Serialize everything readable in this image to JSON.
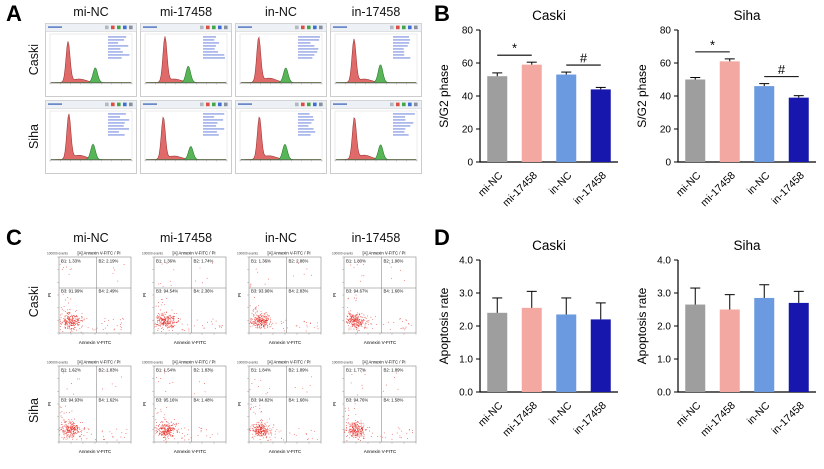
{
  "labels": {
    "A": "A",
    "B": "B",
    "C": "C",
    "D": "D"
  },
  "conditions": [
    "mi-NC",
    "mi-17458",
    "in-NC",
    "in-17458"
  ],
  "cell_lines": [
    "Caski",
    "Siha"
  ],
  "colors": {
    "bar_palette": [
      "#9e9e9e",
      "#f4a8a2",
      "#6b9ae0",
      "#1717ad"
    ],
    "hist_red": "#e06a6a",
    "hist_red_stroke": "#a03a3a",
    "hist_green": "#57b557",
    "hist_green_stroke": "#2e7d32",
    "dot_red": "#e5261f"
  },
  "panel_c": {
    "events_label": "100000 events",
    "plot_title": "[A] Annexin V-FITC / PI",
    "xlabel": "Annexin V-FITC",
    "ylabel": "PI",
    "rows": [
      {
        "cell_line": "Caski",
        "plots": [
          {
            "B1": "1.33%",
            "B2": "2.19%",
            "B3": "91.99%",
            "B4": "2.49%"
          },
          {
            "B1": "1.36%",
            "B2": "1.74%",
            "B3": "94.54%",
            "B4": "2.36%"
          },
          {
            "B1": "1.36%",
            "B2": "2.86%",
            "B3": "93.96%",
            "B4": "2.83%"
          },
          {
            "B1": "1.80%",
            "B2": "1.96%",
            "B3": "94.67%",
            "B4": "1.66%"
          }
        ]
      },
      {
        "cell_line": "Siha",
        "plots": [
          {
            "B1": "1.62%",
            "B2": "1.83%",
            "B3": "94.93%",
            "B4": "1.62%"
          },
          {
            "B1": "1.54%",
            "B2": "1.83%",
            "B3": "95.16%",
            "B4": "1.48%"
          },
          {
            "B1": "1.84%",
            "B2": "1.89%",
            "B3": "94.82%",
            "B4": "1.66%"
          },
          {
            "B1": "1.77%",
            "B2": "1.89%",
            "B3": "94.76%",
            "B4": "1.58%"
          }
        ]
      }
    ]
  },
  "chart_data": [
    {
      "type": "bar",
      "panel": "B",
      "title": "Caski",
      "ylabel": "S/G2 phase",
      "categories": [
        "mi-NC",
        "mi-17458",
        "in-NC",
        "in-17458"
      ],
      "values": [
        52,
        59,
        53,
        44
      ],
      "errors": [
        2,
        1.5,
        1.5,
        1.2
      ],
      "ylim": [
        0,
        80
      ],
      "yticks": [
        0,
        20,
        40,
        60,
        80
      ],
      "ytick_labels": [
        "0",
        "20",
        "40",
        "60",
        "80"
      ],
      "sig": [
        {
          "from": 0,
          "to": 1,
          "label": "*"
        },
        {
          "from": 2,
          "to": 3,
          "label": "#"
        }
      ]
    },
    {
      "type": "bar",
      "panel": "B",
      "title": "Siha",
      "ylabel": "S/G2 phase",
      "categories": [
        "mi-NC",
        "mi-17458",
        "in-NC",
        "in-17458"
      ],
      "values": [
        50,
        61,
        46,
        39
      ],
      "errors": [
        1.2,
        1.5,
        1.5,
        1.2
      ],
      "ylim": [
        0,
        80
      ],
      "yticks": [
        0,
        20,
        40,
        60,
        80
      ],
      "ytick_labels": [
        "0",
        "20",
        "40",
        "60",
        "80"
      ],
      "sig": [
        {
          "from": 0,
          "to": 1,
          "label": "*"
        },
        {
          "from": 2,
          "to": 3,
          "label": "#"
        }
      ]
    },
    {
      "type": "bar",
      "panel": "D",
      "title": "Caski",
      "ylabel": "Apoptosis rate",
      "categories": [
        "mi-NC",
        "mi-17458",
        "in-NC",
        "in-17458"
      ],
      "values": [
        2.4,
        2.55,
        2.35,
        2.2
      ],
      "errors": [
        0.45,
        0.5,
        0.5,
        0.5
      ],
      "ylim": [
        0,
        4
      ],
      "yticks": [
        0,
        1,
        2,
        3,
        4
      ],
      "ytick_labels": [
        "0.0",
        "1.0",
        "2.0",
        "3.0",
        "4.0"
      ],
      "sig": []
    },
    {
      "type": "bar",
      "panel": "D",
      "title": "Siha",
      "ylabel": "Apoptosis rate",
      "categories": [
        "mi-NC",
        "mi-17458",
        "in-NC",
        "in-17458"
      ],
      "values": [
        2.65,
        2.5,
        2.85,
        2.7
      ],
      "errors": [
        0.5,
        0.45,
        0.4,
        0.35
      ],
      "ylim": [
        0,
        4
      ],
      "yticks": [
        0,
        1,
        2,
        3,
        4
      ],
      "ytick_labels": [
        "0.0",
        "1.0",
        "2.0",
        "3.0",
        "4.0"
      ],
      "sig": []
    }
  ]
}
